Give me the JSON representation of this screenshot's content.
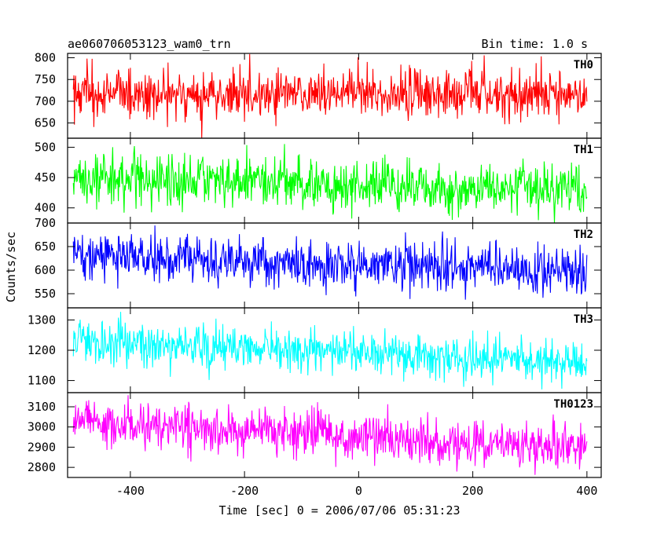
{
  "header": {
    "title": "ae060706053123_wam0_trn",
    "bin_time": "Bin time: 1.0 s"
  },
  "chart_data": {
    "type": "line",
    "title": "ae060706053123_wam0_trn",
    "subtitle": "Bin time: 1.0 s",
    "xlabel": "Time [sec] 0 = 2006/07/06 05:31:23",
    "ylabel": "Counts/sec",
    "xlim": [
      -510,
      425
    ],
    "xticks": [
      -400,
      -200,
      0,
      200,
      400
    ],
    "x_start": -500,
    "x_end": 400,
    "bin_seconds": 1.0,
    "grid": false,
    "panels": [
      {
        "name": "TH0",
        "color": "#ff0000",
        "ylim": [
          615,
          810
        ],
        "yticks": [
          650,
          700,
          750,
          800
        ],
        "trend_start": 717,
        "trend_end": 717,
        "noise_sd": 28
      },
      {
        "name": "TH1",
        "color": "#00ff00",
        "ylim": [
          375,
          515
        ],
        "yticks": [
          400,
          450,
          500
        ],
        "trend_start": 448,
        "trend_end": 428,
        "noise_sd": 22
      },
      {
        "name": "TH2",
        "color": "#0000ff",
        "ylim": [
          520,
          700
        ],
        "yticks": [
          550,
          600,
          650,
          700
        ],
        "trend_start": 632,
        "trend_end": 595,
        "noise_sd": 25
      },
      {
        "name": "TH3",
        "color": "#00ffff",
        "ylim": [
          1060,
          1340
        ],
        "yticks": [
          1100,
          1200,
          1300
        ],
        "trend_start": 1232,
        "trend_end": 1160,
        "noise_sd": 35
      },
      {
        "name": "TH0123",
        "color": "#ff00ff",
        "ylim": [
          2750,
          3170
        ],
        "yticks": [
          2800,
          2900,
          3000,
          3100
        ],
        "trend_start": 3025,
        "trend_end": 2890,
        "noise_sd": 55
      }
    ]
  }
}
